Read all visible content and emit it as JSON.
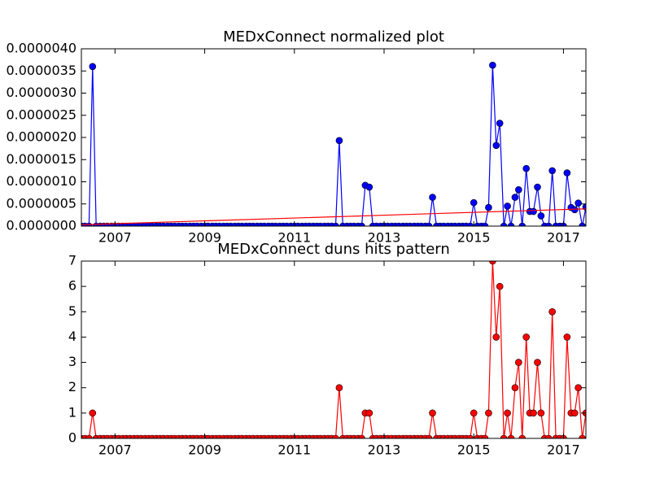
{
  "chart_data": [
    {
      "type": "line",
      "title": "MEDxConnect normalized plot",
      "x": [
        2006.25,
        2006.33,
        2006.42,
        2006.5,
        2006.58,
        2006.67,
        2006.75,
        2006.83,
        2006.92,
        2007,
        2007.08,
        2007.17,
        2007.25,
        2007.33,
        2007.42,
        2007.5,
        2007.58,
        2007.67,
        2007.75,
        2007.83,
        2007.92,
        2008,
        2008.08,
        2008.17,
        2008.25,
        2008.33,
        2008.42,
        2008.5,
        2008.58,
        2008.67,
        2008.75,
        2008.83,
        2008.92,
        2009,
        2009.08,
        2009.17,
        2009.25,
        2009.33,
        2009.42,
        2009.5,
        2009.58,
        2009.67,
        2009.75,
        2009.83,
        2009.92,
        2010,
        2010.08,
        2010.17,
        2010.25,
        2010.33,
        2010.42,
        2010.5,
        2010.58,
        2010.67,
        2010.75,
        2010.83,
        2010.92,
        2011,
        2011.08,
        2011.17,
        2011.25,
        2011.33,
        2011.42,
        2011.5,
        2011.58,
        2011.67,
        2011.75,
        2011.83,
        2011.92,
        2012,
        2012.08,
        2012.17,
        2012.25,
        2012.33,
        2012.42,
        2012.5,
        2012.58,
        2012.67,
        2012.75,
        2012.83,
        2012.92,
        2013,
        2013.08,
        2013.17,
        2013.25,
        2013.33,
        2013.42,
        2013.5,
        2013.58,
        2013.67,
        2013.75,
        2013.83,
        2013.92,
        2014,
        2014.08,
        2014.17,
        2014.25,
        2014.33,
        2014.42,
        2014.5,
        2014.58,
        2014.67,
        2014.75,
        2014.83,
        2014.92,
        2015,
        2015.08,
        2015.17,
        2015.25,
        2015.33,
        2015.42,
        2015.5,
        2015.58,
        2015.67,
        2015.75,
        2015.83,
        2015.92,
        2016,
        2016.08,
        2016.17,
        2016.25,
        2016.33,
        2016.42,
        2016.5,
        2016.58,
        2016.67,
        2016.75,
        2016.83,
        2016.92,
        2017,
        2017.08,
        2017.17,
        2017.25,
        2017.33,
        2017.42,
        2017.5
      ],
      "series": [
        {
          "color": "#0000ff",
          "markers": true,
          "values": [
            0,
            0,
            0,
            3.6e-06,
            0,
            0,
            0,
            0,
            0,
            0,
            0,
            0,
            0,
            0,
            0,
            0,
            0,
            0,
            0,
            0,
            0,
            0,
            0,
            0,
            0,
            0,
            0,
            0,
            0,
            0,
            0,
            0,
            0,
            0,
            0,
            0,
            0,
            0,
            0,
            0,
            0,
            0,
            0,
            0,
            0,
            0,
            0,
            0,
            0,
            0,
            0,
            0,
            0,
            0,
            0,
            0,
            0,
            0,
            0,
            0,
            0,
            0,
            0,
            0,
            0,
            0,
            0,
            0,
            0,
            1.93e-06,
            0,
            0,
            0,
            0,
            0,
            0,
            9.2e-07,
            8.8e-07,
            0,
            0,
            0,
            0,
            0,
            0,
            0,
            0,
            0,
            0,
            0,
            0,
            0,
            0,
            0,
            0,
            6.5e-07,
            0,
            0,
            0,
            0,
            0,
            0,
            0,
            0,
            0,
            0,
            5.3e-07,
            0,
            0,
            0,
            4.2e-07,
            3.63e-06,
            1.82e-06,
            2.32e-06,
            0,
            4.5e-07,
            0,
            6.5e-07,
            8.2e-07,
            0,
            1.3e-06,
            3.3e-07,
            3.3e-07,
            8.8e-07,
            2.3e-07,
            0,
            0,
            1.25e-06,
            0,
            0,
            0,
            1.2e-06,
            4.2e-07,
            3.7e-07,
            5.2e-07,
            0,
            4.3e-07
          ]
        },
        {
          "color": "#ff0000",
          "markers": false,
          "x": [
            2006.25,
            2017.5
          ],
          "values": [
            3e-08,
            3.9e-07
          ]
        }
      ],
      "xlim": [
        2006.25,
        2017.5
      ],
      "xticks": [
        2007,
        2009,
        2011,
        2013,
        2015,
        2017
      ],
      "ylim": [
        0,
        4e-06
      ],
      "yticks": [
        {
          "value": 0,
          "label": "0.0000000"
        },
        {
          "value": 5e-07,
          "label": "0.0000005"
        },
        {
          "value": 1e-06,
          "label": "0.0000010"
        },
        {
          "value": 1.5e-06,
          "label": "0.0000015"
        },
        {
          "value": 2e-06,
          "label": "0.0000020"
        },
        {
          "value": 2.5e-06,
          "label": "0.0000025"
        },
        {
          "value": 3e-06,
          "label": "0.0000030"
        },
        {
          "value": 3.5e-06,
          "label": "0.0000035"
        },
        {
          "value": 4e-06,
          "label": "0.0000040"
        }
      ]
    },
    {
      "type": "line",
      "title": "MEDxConnect duns hits pattern",
      "x": [
        2006.25,
        2006.33,
        2006.42,
        2006.5,
        2006.58,
        2006.67,
        2006.75,
        2006.83,
        2006.92,
        2007,
        2007.08,
        2007.17,
        2007.25,
        2007.33,
        2007.42,
        2007.5,
        2007.58,
        2007.67,
        2007.75,
        2007.83,
        2007.92,
        2008,
        2008.08,
        2008.17,
        2008.25,
        2008.33,
        2008.42,
        2008.5,
        2008.58,
        2008.67,
        2008.75,
        2008.83,
        2008.92,
        2009,
        2009.08,
        2009.17,
        2009.25,
        2009.33,
        2009.42,
        2009.5,
        2009.58,
        2009.67,
        2009.75,
        2009.83,
        2009.92,
        2010,
        2010.08,
        2010.17,
        2010.25,
        2010.33,
        2010.42,
        2010.5,
        2010.58,
        2010.67,
        2010.75,
        2010.83,
        2010.92,
        2011,
        2011.08,
        2011.17,
        2011.25,
        2011.33,
        2011.42,
        2011.5,
        2011.58,
        2011.67,
        2011.75,
        2011.83,
        2011.92,
        2012,
        2012.08,
        2012.17,
        2012.25,
        2012.33,
        2012.42,
        2012.5,
        2012.58,
        2012.67,
        2012.75,
        2012.83,
        2012.92,
        2013,
        2013.08,
        2013.17,
        2013.25,
        2013.33,
        2013.42,
        2013.5,
        2013.58,
        2013.67,
        2013.75,
        2013.83,
        2013.92,
        2014,
        2014.08,
        2014.17,
        2014.25,
        2014.33,
        2014.42,
        2014.5,
        2014.58,
        2014.67,
        2014.75,
        2014.83,
        2014.92,
        2015,
        2015.08,
        2015.17,
        2015.25,
        2015.33,
        2015.42,
        2015.5,
        2015.58,
        2015.67,
        2015.75,
        2015.83,
        2015.92,
        2016,
        2016.08,
        2016.17,
        2016.25,
        2016.33,
        2016.42,
        2016.5,
        2016.58,
        2016.67,
        2016.75,
        2016.83,
        2016.92,
        2017,
        2017.08,
        2017.17,
        2017.25,
        2017.33,
        2017.42,
        2017.5
      ],
      "series": [
        {
          "color": "#ff0000",
          "markers": true,
          "values": [
            0,
            0,
            0,
            1,
            0,
            0,
            0,
            0,
            0,
            0,
            0,
            0,
            0,
            0,
            0,
            0,
            0,
            0,
            0,
            0,
            0,
            0,
            0,
            0,
            0,
            0,
            0,
            0,
            0,
            0,
            0,
            0,
            0,
            0,
            0,
            0,
            0,
            0,
            0,
            0,
            0,
            0,
            0,
            0,
            0,
            0,
            0,
            0,
            0,
            0,
            0,
            0,
            0,
            0,
            0,
            0,
            0,
            0,
            0,
            0,
            0,
            0,
            0,
            0,
            0,
            0,
            0,
            0,
            0,
            2,
            0,
            0,
            0,
            0,
            0,
            0,
            1,
            1,
            0,
            0,
            0,
            0,
            0,
            0,
            0,
            0,
            0,
            0,
            0,
            0,
            0,
            0,
            0,
            0,
            1,
            0,
            0,
            0,
            0,
            0,
            0,
            0,
            0,
            0,
            0,
            1,
            0,
            0,
            0,
            1,
            7,
            4,
            6,
            0,
            1,
            0,
            2,
            3,
            0,
            4,
            1,
            1,
            3,
            1,
            0,
            0,
            5,
            0,
            0,
            0,
            4,
            1,
            1,
            2,
            0,
            1
          ]
        }
      ],
      "xlim": [
        2006.25,
        2017.5
      ],
      "xticks": [
        2007,
        2009,
        2011,
        2013,
        2015,
        2017
      ],
      "ylim": [
        0,
        7
      ],
      "yticks": [
        0,
        1,
        2,
        3,
        4,
        5,
        6,
        7
      ]
    }
  ]
}
